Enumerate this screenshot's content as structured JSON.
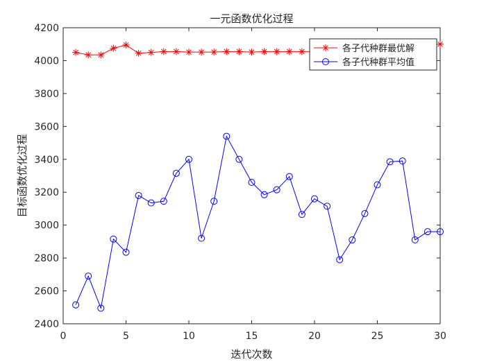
{
  "chart_data": {
    "type": "line",
    "title": "一元函数优化过程",
    "xlabel": "迭代次数",
    "ylabel": "目标函数优化过程",
    "xlim": [
      0,
      30
    ],
    "ylim": [
      2400,
      4200
    ],
    "xticks": [
      0,
      5,
      10,
      15,
      20,
      25,
      30
    ],
    "yticks": [
      2400,
      2600,
      2800,
      3000,
      3200,
      3400,
      3600,
      3800,
      4000,
      4200
    ],
    "grid": false,
    "legend_position": "top-right",
    "x": [
      1,
      2,
      3,
      4,
      5,
      6,
      7,
      8,
      9,
      10,
      11,
      12,
      13,
      14,
      15,
      16,
      17,
      18,
      19,
      20,
      21,
      22,
      23,
      24,
      25,
      26,
      27,
      28,
      29,
      30
    ],
    "series": [
      {
        "name": "各子代种群最优解",
        "color": "#ff0000",
        "marker": "asterisk",
        "values": [
          4050,
          4035,
          4035,
          4075,
          4095,
          4045,
          4050,
          4055,
          4055,
          4052,
          4052,
          4052,
          4055,
          4055,
          4052,
          4055,
          4055,
          4055,
          4055,
          4055,
          4055,
          4058,
          4060,
          4060,
          4070,
          4075,
          4085,
          4090,
          4100,
          4100
        ]
      },
      {
        "name": "各子代种群平均值",
        "color": "#0000ff",
        "marker": "circle",
        "values": [
          2515,
          2690,
          2495,
          2915,
          2835,
          3180,
          3135,
          3145,
          3315,
          3400,
          2920,
          3145,
          3540,
          3400,
          3260,
          3185,
          3215,
          3295,
          3065,
          3160,
          3115,
          2790,
          2910,
          3070,
          3245,
          3385,
          3390,
          2910,
          2960,
          2960
        ]
      }
    ]
  }
}
